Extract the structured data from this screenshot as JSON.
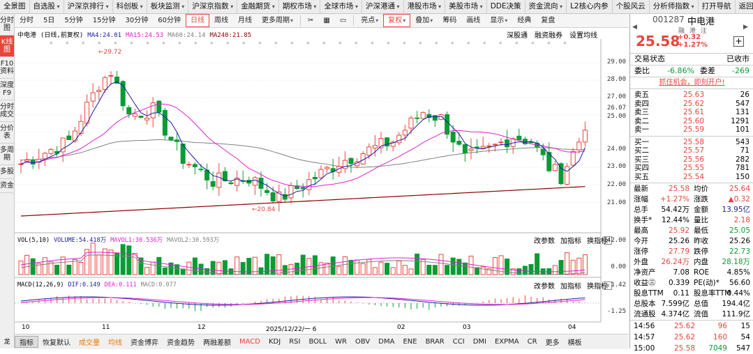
{
  "topnav": [
    {
      "label": "全景图",
      "arrow": false
    },
    {
      "label": "自选股",
      "arrow": true
    },
    {
      "label": "沪深京排行",
      "arrow": true
    },
    {
      "label": "科创板",
      "arrow": true
    },
    {
      "label": "板块监测",
      "arrow": true
    },
    {
      "label": "沪深京指数",
      "arrow": true
    },
    {
      "label": "金融期货",
      "arrow": true
    },
    {
      "label": "期权市场",
      "arrow": true
    },
    {
      "label": "全球市场",
      "arrow": true
    },
    {
      "label": "沪深港通",
      "arrow": true
    },
    {
      "label": "港股市场",
      "arrow": true
    },
    {
      "label": "美股市场",
      "arrow": true
    },
    {
      "label": "DDE决策",
      "arrow": false
    },
    {
      "label": "资金流向",
      "arrow": true
    },
    {
      "label": "L2核心内参",
      "arrow": false
    },
    {
      "label": "个股风云",
      "arrow": false
    },
    {
      "label": "分析师指数",
      "arrow": true
    },
    {
      "label": "打开导航",
      "arrow": false
    },
    {
      "label": "返回",
      "arrow": false
    }
  ],
  "leftbar": [
    "分时图",
    "K线图",
    "F10资料",
    "深度F9",
    "分时成交",
    "分价表",
    "多周期",
    "多股",
    "资金"
  ],
  "leftbar_bottom": "龙",
  "toolbar": {
    "periods": [
      "分时",
      "5日",
      "5分钟",
      "15分钟",
      "30分钟",
      "60分钟",
      "日线",
      "周线",
      "月线"
    ],
    "active_period": "日线",
    "more_period": "更多周期",
    "right_items": [
      "亮点",
      "复权",
      "叠加",
      "筹码",
      "画线",
      "显示",
      "经典",
      "复盘"
    ],
    "active_right": "复权",
    "icons": [
      "scissors-icon",
      "grid-icon",
      "window-icon"
    ]
  },
  "chart": {
    "stock_name": "中电港",
    "mode": "(日线,前复权)",
    "ma": [
      {
        "label": "MA4:24.01",
        "color": "#1a1aa6"
      },
      {
        "label": "MA15:24.53",
        "color": "#e020d0"
      },
      {
        "label": "MA60:24.14",
        "color": "#808080"
      },
      {
        "label": "MA240:21.85",
        "color": "#8b0000"
      }
    ],
    "tools": [
      "深股通",
      "融资融券",
      "设置均线"
    ],
    "price_axis": [
      "29.00",
      "28.00",
      "27.00",
      "26.07",
      "25.00",
      "24.00",
      "23.00",
      "22.00",
      "21.00"
    ],
    "high_mark": "29.72",
    "low_mark": "20.84",
    "vol_legend": [
      {
        "label": "VOL(5,10)",
        "color": "#000"
      },
      {
        "label": "VOLUME:54.418万",
        "color": "#1a1aa6"
      },
      {
        "label": "MAVOL1:30.536万",
        "color": "#e020d0"
      },
      {
        "label": "MAVOL2:30.593万",
        "color": "#808080"
      }
    ],
    "vol_axis": [
      "142.00",
      "0.00"
    ],
    "macd_legend": [
      {
        "label": "MACD(12,26,9)",
        "color": "#000"
      },
      {
        "label": "DIF:0.149",
        "color": "#1a1aa6"
      },
      {
        "label": "DEA:0.111",
        "color": "#e020d0"
      },
      {
        "label": "MACD:0.077",
        "color": "#808080"
      }
    ],
    "macd_axis": [
      "1.42",
      "-1.25"
    ],
    "sub_tools": [
      "改参数",
      "加指标",
      "换指标"
    ],
    "date_labels": [
      "10",
      "11",
      "12",
      "2025/12/22/一  6",
      "02",
      "03",
      "04"
    ]
  },
  "indicators": [
    "指标",
    "恢复默认",
    "成交量",
    "均线",
    "资金博弈",
    "资金趋势",
    "两融差额",
    "MACD",
    "KDJ",
    "RSI",
    "BOLL",
    "WR",
    "OBV",
    "DMA",
    "ENE",
    "BRAR",
    "CCI",
    "DMI",
    "EXPMA",
    "CR",
    "更多",
    "横板"
  ],
  "quote": {
    "code": "001287",
    "name": "中电港",
    "tags": "融 港 注",
    "price": "25.58",
    "change": "+0.32",
    "change_pct": "+1.27%",
    "status_label": "交易状态",
    "status_value": "已收市",
    "weibi_label": "委比",
    "weibi_value": "-6.86%",
    "weicha_label": "委差",
    "weicha_value": "-269",
    "promo": "抓住机会，即刻开户!",
    "asks": [
      {
        "label": "卖五",
        "price": "25.63",
        "vol": "26"
      },
      {
        "label": "卖四",
        "price": "25.62",
        "vol": "547"
      },
      {
        "label": "卖三",
        "price": "25.61",
        "vol": "131"
      },
      {
        "label": "卖二",
        "price": "25.60",
        "vol": "1291"
      },
      {
        "label": "卖一",
        "price": "25.59",
        "vol": "101"
      }
    ],
    "bids": [
      {
        "label": "买一",
        "price": "25.58",
        "vol": "543"
      },
      {
        "label": "买二",
        "price": "25.57",
        "vol": "71"
      },
      {
        "label": "买三",
        "price": "25.56",
        "vol": "282"
      },
      {
        "label": "买四",
        "price": "25.55",
        "vol": "781"
      },
      {
        "label": "买五",
        "price": "25.54",
        "vol": "150"
      }
    ],
    "stats": [
      {
        "l1": "最新",
        "v1": "25.58",
        "c1": "red",
        "l2": "均价",
        "v2": "25.64",
        "c2": "red"
      },
      {
        "l1": "涨幅",
        "v1": "+1.27%",
        "c1": "red",
        "l2": "涨跌",
        "v2": "▲0.32",
        "c2": "red"
      },
      {
        "l1": "总手",
        "v1": "54.42万",
        "c1": "",
        "l2": "金额",
        "v2": "13.95亿",
        "c2": "blue"
      },
      {
        "l1": "换手*",
        "v1": "12.44%",
        "c1": "",
        "l2": "量比",
        "v2": "2.18",
        "c2": "red"
      },
      {
        "l1": "最高",
        "v1": "25.92",
        "c1": "red",
        "l2": "最低",
        "v2": "25.05",
        "c2": "green"
      },
      {
        "l1": "今开",
        "v1": "25.26",
        "c1": "",
        "l2": "昨收",
        "v2": "25.26",
        "c2": ""
      },
      {
        "l1": "涨停",
        "v1": "27.79",
        "c1": "red",
        "l2": "跌停",
        "v2": "22.73",
        "c2": "green"
      },
      {
        "l1": "外盘",
        "v1": "26.24万",
        "c1": "red",
        "l2": "内盘",
        "v2": "28.18万",
        "c2": "green"
      },
      {
        "l1": "净资产",
        "v1": "7.08",
        "c1": "",
        "l2": "ROE",
        "v2": "4.85%",
        "c2": ""
      },
      {
        "l1": "收益㊂",
        "v1": "0.339",
        "c1": "",
        "l2": "PE(动)*",
        "v2": "56.60",
        "c2": ""
      },
      {
        "l1": "股息TTM",
        "v1": "0.11",
        "c1": "",
        "l2": "股息率TTM",
        "v2": "0.44%",
        "c2": ""
      },
      {
        "l1": "总股本",
        "v1": "7.599亿",
        "c1": "",
        "l2": "总值",
        "v2": "194.4亿",
        "c2": ""
      },
      {
        "l1": "流通股",
        "v1": "4.374亿",
        "c1": "",
        "l2": "流值",
        "v2": "111.9亿",
        "c2": ""
      }
    ],
    "ticks": [
      {
        "time": "14:56",
        "price": "25.62",
        "vol": "96",
        "num": "15",
        "vc": "red"
      },
      {
        "time": "14:57",
        "price": "25.62",
        "vol": "160",
        "num": "54",
        "vc": "red"
      },
      {
        "time": "15:00",
        "price": "25.58",
        "vol": "7049",
        "num": "547",
        "vc": "green"
      }
    ]
  }
}
